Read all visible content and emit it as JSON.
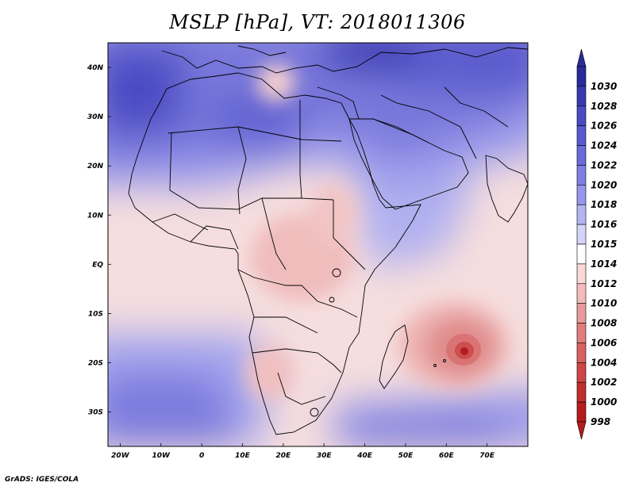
{
  "title": "MSLP [hPa], VT: 2018011306",
  "credit": "GrADS: IGES/COLA",
  "lat_labels": [
    "40N",
    "30N",
    "20N",
    "10N",
    "EQ",
    "10S",
    "20S",
    "30S"
  ],
  "lat_values": [
    40,
    30,
    20,
    10,
    0,
    -10,
    -20,
    -30
  ],
  "lon_labels": [
    "20W",
    "10W",
    "0",
    "10E",
    "20E",
    "30E",
    "40E",
    "50E",
    "60E",
    "70E"
  ],
  "lon_values": [
    -20,
    -10,
    0,
    10,
    20,
    30,
    40,
    50,
    60,
    70
  ],
  "extent": {
    "lon_min": -23,
    "lon_max": 80,
    "lat_min": -37,
    "lat_max": 45
  },
  "colorbar": {
    "labels": [
      "1030",
      "1028",
      "1026",
      "1024",
      "1022",
      "1020",
      "1018",
      "1016",
      "1015",
      "1014",
      "1012",
      "1010",
      "1008",
      "1006",
      "1004",
      "1002",
      "1000",
      "998"
    ],
    "colors": [
      "#2a2a9a",
      "#3a3ab0",
      "#4a4ac2",
      "#5a5ad0",
      "#6a6adb",
      "#7e7ee4",
      "#9696ec",
      "#b4b4f2",
      "#d4d4f8",
      "#ffffff",
      "#f9d8d8",
      "#f2bcbc",
      "#e99a9a",
      "#e07e7e",
      "#d86262",
      "#cf4646",
      "#c22e2e",
      "#b51c1c"
    ]
  },
  "pressure_field": {
    "low_center": {
      "lon": 65,
      "lat": -18.5,
      "value": 998
    },
    "levels_hpa": [
      998,
      1000,
      1002,
      1004,
      1006,
      1008,
      1010,
      1012,
      1014,
      1015,
      1016,
      1018,
      1020,
      1022,
      1024,
      1026,
      1028,
      1030
    ]
  }
}
